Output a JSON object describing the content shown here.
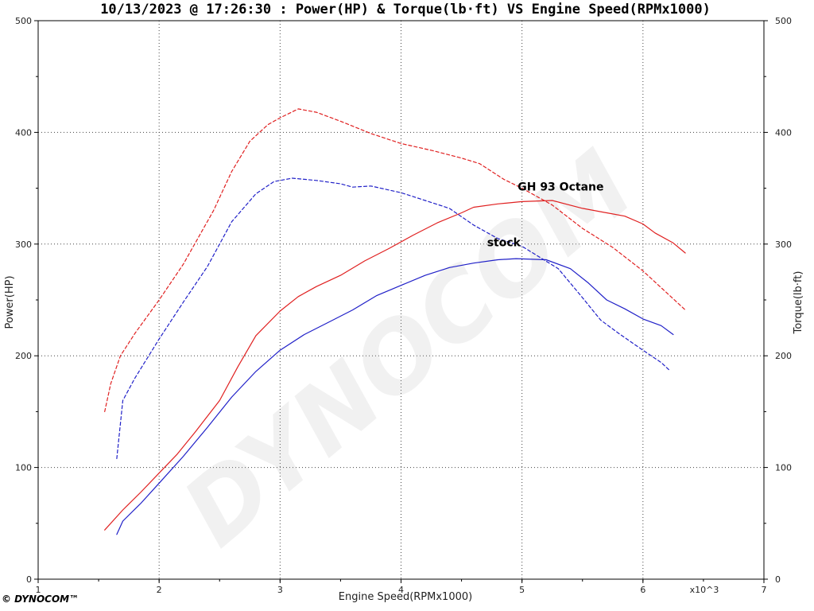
{
  "chart_data": {
    "type": "line",
    "title": "10/13/2023 @ 17:26:30 : Power(HP) & Torque(lb·ft) VS Engine Speed(RPMx1000)",
    "xlabel": "Engine Speed(RPMx1000)",
    "x_multiplier_label": "x10^3",
    "ylabel_left": "Power(HP)",
    "ylabel_right": "Torque(lb·ft)",
    "xlim": [
      1,
      7
    ],
    "ylim": [
      0,
      500
    ],
    "x_ticks": [
      "1",
      "2",
      "3",
      "4",
      "5",
      "6",
      "7"
    ],
    "y_ticks": [
      "0",
      "100",
      "200",
      "300",
      "400",
      "500"
    ],
    "grid": true,
    "series": [
      {
        "name": "GH 93 Octane",
        "measure": "power",
        "color": "#e02020",
        "dashed": false,
        "points": [
          [
            1.55,
            44
          ],
          [
            1.7,
            62
          ],
          [
            1.85,
            78
          ],
          [
            2.0,
            95
          ],
          [
            2.15,
            112
          ],
          [
            2.3,
            132
          ],
          [
            2.5,
            160
          ],
          [
            2.65,
            190
          ],
          [
            2.8,
            218
          ],
          [
            3.0,
            240
          ],
          [
            3.15,
            253
          ],
          [
            3.3,
            262
          ],
          [
            3.5,
            272
          ],
          [
            3.7,
            285
          ],
          [
            3.9,
            296
          ],
          [
            4.1,
            308
          ],
          [
            4.3,
            319
          ],
          [
            4.5,
            328
          ],
          [
            4.6,
            333
          ],
          [
            4.8,
            336
          ],
          [
            5.0,
            338
          ],
          [
            5.25,
            339
          ],
          [
            5.5,
            332
          ],
          [
            5.7,
            328
          ],
          [
            5.85,
            325
          ],
          [
            6.0,
            318
          ],
          [
            6.1,
            310
          ],
          [
            6.25,
            301
          ],
          [
            6.35,
            292
          ]
        ]
      },
      {
        "name": "GH 93 Octane",
        "measure": "torque",
        "color": "#e02020",
        "dashed": true,
        "points": [
          [
            1.55,
            150
          ],
          [
            1.6,
            175
          ],
          [
            1.68,
            200
          ],
          [
            1.8,
            220
          ],
          [
            2.0,
            250
          ],
          [
            2.2,
            282
          ],
          [
            2.45,
            330
          ],
          [
            2.6,
            365
          ],
          [
            2.75,
            392
          ],
          [
            2.9,
            407
          ],
          [
            3.0,
            413
          ],
          [
            3.15,
            421
          ],
          [
            3.3,
            418
          ],
          [
            3.5,
            410
          ],
          [
            3.75,
            399
          ],
          [
            4.0,
            390
          ],
          [
            4.25,
            384
          ],
          [
            4.5,
            377
          ],
          [
            4.65,
            372
          ],
          [
            4.85,
            358
          ],
          [
            5.0,
            350
          ],
          [
            5.25,
            335
          ],
          [
            5.5,
            314
          ],
          [
            5.75,
            297
          ],
          [
            6.0,
            276
          ],
          [
            6.2,
            256
          ],
          [
            6.35,
            241
          ]
        ]
      },
      {
        "name": "stock",
        "measure": "power",
        "color": "#2020c8",
        "dashed": false,
        "points": [
          [
            1.65,
            40
          ],
          [
            1.7,
            52
          ],
          [
            1.85,
            68
          ],
          [
            2.0,
            86
          ],
          [
            2.2,
            110
          ],
          [
            2.4,
            136
          ],
          [
            2.6,
            163
          ],
          [
            2.8,
            186
          ],
          [
            3.0,
            205
          ],
          [
            3.2,
            219
          ],
          [
            3.4,
            230
          ],
          [
            3.6,
            241
          ],
          [
            3.8,
            254
          ],
          [
            4.0,
            263
          ],
          [
            4.2,
            272
          ],
          [
            4.4,
            279
          ],
          [
            4.6,
            283
          ],
          [
            4.8,
            286
          ],
          [
            4.95,
            287
          ],
          [
            5.2,
            286
          ],
          [
            5.4,
            278
          ],
          [
            5.55,
            265
          ],
          [
            5.7,
            250
          ],
          [
            5.85,
            242
          ],
          [
            6.0,
            233
          ],
          [
            6.15,
            227
          ],
          [
            6.25,
            219
          ]
        ]
      },
      {
        "name": "stock",
        "measure": "torque",
        "color": "#2020c8",
        "dashed": true,
        "points": [
          [
            1.65,
            108
          ],
          [
            1.7,
            160
          ],
          [
            1.8,
            180
          ],
          [
            2.0,
            215
          ],
          [
            2.2,
            248
          ],
          [
            2.4,
            280
          ],
          [
            2.6,
            320
          ],
          [
            2.8,
            345
          ],
          [
            2.95,
            356
          ],
          [
            3.1,
            359
          ],
          [
            3.3,
            357
          ],
          [
            3.5,
            354
          ],
          [
            3.6,
            351
          ],
          [
            3.75,
            352
          ],
          [
            4.0,
            346
          ],
          [
            4.2,
            339
          ],
          [
            4.4,
            332
          ],
          [
            4.6,
            317
          ],
          [
            4.8,
            305
          ],
          [
            5.0,
            298
          ],
          [
            5.3,
            278
          ],
          [
            5.5,
            252
          ],
          [
            5.65,
            232
          ],
          [
            5.8,
            220
          ],
          [
            6.0,
            205
          ],
          [
            6.15,
            194
          ],
          [
            6.22,
            187
          ]
        ]
      }
    ],
    "annotations": [
      {
        "text": "GH 93 Octane",
        "x": 5.32,
        "y": 348
      },
      {
        "text": "stock",
        "x": 4.85,
        "y": 298
      }
    ],
    "brand": "© DYNOCOM™",
    "watermark": "DYNOCOM"
  }
}
